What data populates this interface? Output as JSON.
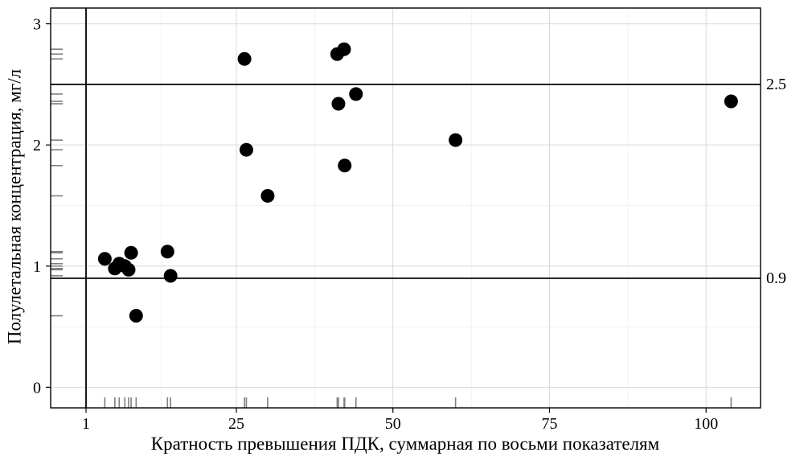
{
  "colors": {
    "background": "#ffffff",
    "grid_major": "#d9d9d9",
    "grid_minor": "#ededed",
    "panel_border": "#000000",
    "point": "#000000",
    "rug": "#7f7f7f",
    "reference_line": "#000000"
  },
  "chart_data": {
    "type": "scatter",
    "title": "",
    "xlabel": "Кратность превышения ПДК, суммарная по восьми показателям",
    "ylabel": "Полулетальная концентрация, мг/л",
    "xlim": [
      -4.65,
      108.7
    ],
    "ylim": [
      -0.17,
      3.13
    ],
    "x_ticks": [
      1,
      25,
      50,
      75,
      100
    ],
    "y_ticks": [
      0,
      1,
      2,
      3
    ],
    "x_minor_ticks": [
      13,
      37.5,
      62.5,
      87.5
    ],
    "y_minor_ticks": [
      0.5,
      1.5,
      2.5
    ],
    "grid": true,
    "legend": false,
    "points": [
      {
        "x": 4.0,
        "y": 1.06
      },
      {
        "x": 6.3,
        "y": 1.02
      },
      {
        "x": 7.2,
        "y": 1.0
      },
      {
        "x": 5.6,
        "y": 0.98
      },
      {
        "x": 7.8,
        "y": 0.97
      },
      {
        "x": 8.2,
        "y": 1.11
      },
      {
        "x": 14.0,
        "y": 1.12
      },
      {
        "x": 14.5,
        "y": 0.92
      },
      {
        "x": 9.0,
        "y": 0.59
      },
      {
        "x": 26.3,
        "y": 2.71
      },
      {
        "x": 26.6,
        "y": 1.96
      },
      {
        "x": 30.0,
        "y": 1.58
      },
      {
        "x": 41.1,
        "y": 2.75
      },
      {
        "x": 42.2,
        "y": 2.79
      },
      {
        "x": 41.3,
        "y": 2.34
      },
      {
        "x": 42.3,
        "y": 1.83
      },
      {
        "x": 44.1,
        "y": 2.42
      },
      {
        "x": 60.0,
        "y": 2.04
      },
      {
        "x": 104.0,
        "y": 2.36
      }
    ],
    "reference_lines": {
      "horizontal": [
        {
          "value": 2.5,
          "label": "2.5"
        },
        {
          "value": 0.9,
          "label": "0.9"
        }
      ],
      "vertical": [
        {
          "value": 1,
          "label": ""
        }
      ]
    },
    "rug": {
      "x_axis": "bottom marks at each point x value",
      "y_axis": "left marks at each point y value"
    }
  }
}
